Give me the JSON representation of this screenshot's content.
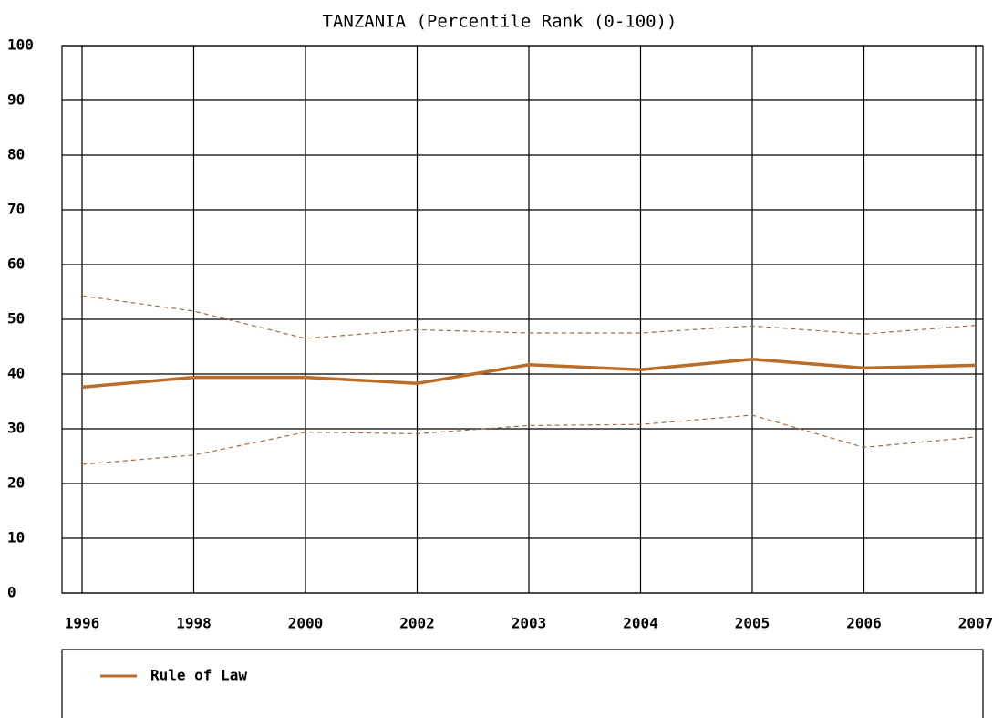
{
  "chart_data": {
    "type": "line",
    "title": "TANZANIA (Percentile Rank (0-100))",
    "categories": [
      "1996",
      "1998",
      "2000",
      "2002",
      "2003",
      "2004",
      "2005",
      "2006",
      "2007"
    ],
    "series": [
      {
        "name": "Rule of Law",
        "color": "#b86e28",
        "values": [
          37.6,
          39.4,
          39.4,
          38.3,
          41.7,
          40.8,
          42.7,
          41.1,
          41.6
        ]
      },
      {
        "color": "#a56b43",
        "dashed": true,
        "values": [
          54.3,
          51.5,
          46.5,
          48.1,
          47.5,
          47.5,
          48.8,
          47.3,
          48.9
        ]
      },
      {
        "color": "#a56b43",
        "dashed": true,
        "values": [
          23.5,
          25.2,
          29.4,
          29.1,
          30.6,
          30.8,
          32.5,
          26.6,
          28.5
        ]
      }
    ],
    "ylim": [
      0,
      100
    ],
    "yticks": [
      0,
      10,
      20,
      30,
      40,
      50,
      60,
      70,
      80,
      90,
      100
    ],
    "grid": true
  }
}
